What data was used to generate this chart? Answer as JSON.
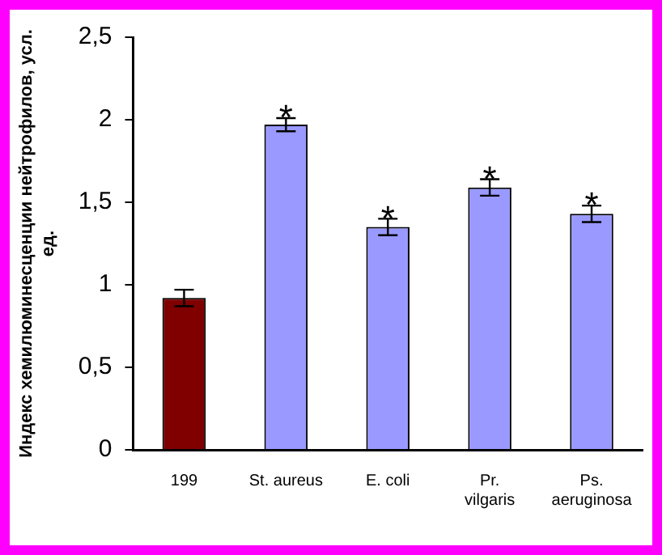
{
  "chart_data": {
    "type": "bar",
    "ylabel": "Индекс хемилюминесценции нейтрофилов, усл. ед.",
    "categories": [
      "199",
      "St. aureus",
      "E. coli",
      "Pr. vilgaris",
      "Ps. aeruginosa"
    ],
    "values": [
      0.92,
      1.97,
      1.35,
      1.59,
      1.43
    ],
    "colors": [
      "#800000",
      "#9999ff",
      "#9999ff",
      "#9999ff",
      "#9999ff"
    ],
    "errors": [
      0.05,
      0.04,
      0.05,
      0.05,
      0.05
    ],
    "ylim": [
      0,
      2.5
    ],
    "yticks": [
      0,
      {
        "value": 0.5,
        "label": "0,5"
      },
      1,
      {
        "value": 1.5,
        "label": "1,5"
      },
      2,
      {
        "value": 2.5,
        "label": "2,5"
      }
    ],
    "grid": false,
    "legend": false,
    "annotations": [
      {
        "text": "*",
        "x": "St. aureus",
        "y": 2.01
      },
      {
        "text": "*",
        "x": "E. coli",
        "y": 1.4
      },
      {
        "text": "*",
        "x": "Pr. vilgaris",
        "y": 1.64
      },
      {
        "text": "*",
        "x": "Ps. aeruginosa",
        "y": 1.48
      }
    ]
  }
}
